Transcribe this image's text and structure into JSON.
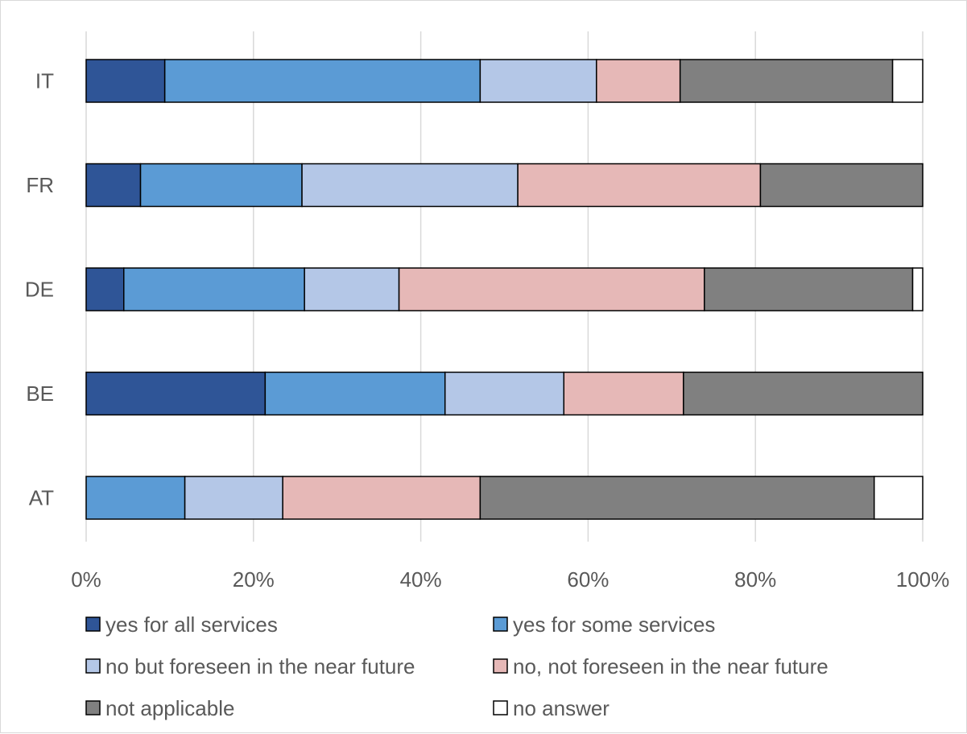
{
  "chart_data": {
    "type": "bar",
    "orientation": "horizontal",
    "stacked": "percent",
    "categories": [
      "IT",
      "FR",
      "DE",
      "BE",
      "AT"
    ],
    "xlim": [
      0,
      100
    ],
    "x_ticks": [
      "0%",
      "20%",
      "40%",
      "60%",
      "80%",
      "100%"
    ],
    "grid": "vertical",
    "legend_position": "bottom",
    "series": [
      {
        "name": "yes for all services",
        "color": "#2f5597",
        "values": [
          9.4,
          6.5,
          4.5,
          21.4,
          0
        ]
      },
      {
        "name": "yes for some services",
        "color": "#5b9bd5",
        "values": [
          37.7,
          19.3,
          21.6,
          21.5,
          11.8
        ]
      },
      {
        "name": "no but foreseen in the near future",
        "color": "#b4c7e7",
        "values": [
          13.9,
          25.8,
          11.3,
          14.2,
          11.7
        ]
      },
      {
        "name": "no, not foreseen in the near future",
        "color": "#e6b8b7",
        "values": [
          10.0,
          29.0,
          36.5,
          14.3,
          23.6
        ]
      },
      {
        "name": "not applicable",
        "color": "#808080",
        "values": [
          25.4,
          19.4,
          24.9,
          28.6,
          47.1
        ]
      },
      {
        "name": "no answer",
        "color": "#ffffff",
        "values": [
          3.6,
          0,
          1.2,
          0,
          5.8
        ]
      }
    ]
  }
}
